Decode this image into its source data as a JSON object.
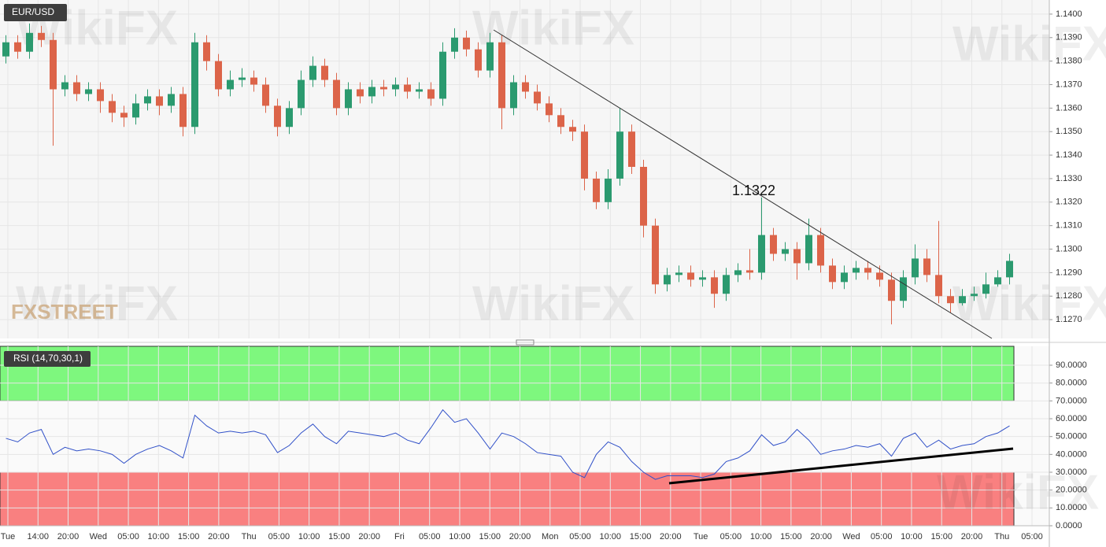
{
  "chart_data": [
    {
      "type": "candlestick",
      "title": "EUR/USD",
      "annotation": "1.1322",
      "logo": "FXSTREET",
      "watermark": "WikiFX",
      "up_color": "#2b9a6f",
      "down_color": "#dc6449",
      "grid": true,
      "open": [
        1.1382,
        1.1388,
        1.1384,
        1.1392,
        1.1389,
        1.1368,
        1.1371,
        1.1366,
        1.1368,
        1.1363,
        1.1358,
        1.1356,
        1.1362,
        1.1365,
        1.1361,
        1.1366,
        1.1352,
        1.1388,
        1.138,
        1.1368,
        1.1372,
        1.1373,
        1.137,
        1.1361,
        1.1352,
        1.136,
        1.1372,
        1.1378,
        1.1372,
        1.136,
        1.1368,
        1.1365,
        1.1369,
        1.1368,
        1.137,
        1.1367,
        1.1368,
        1.1364,
        1.1384,
        1.139,
        1.1385,
        1.1376,
        1.1388,
        1.136,
        1.1371,
        1.1367,
        1.1362,
        1.1357,
        1.1352,
        1.135,
        1.133,
        1.132,
        1.133,
        1.135,
        1.1335,
        1.131,
        1.1285,
        1.1289,
        1.129,
        1.1287,
        1.1288,
        1.1281,
        1.1289,
        1.1291,
        1.129,
        1.1306,
        1.1298,
        1.13,
        1.1294,
        1.1306,
        1.1293,
        1.1286,
        1.129,
        1.1292,
        1.129,
        1.1287,
        1.1278,
        1.1288,
        1.1296,
        1.1289,
        1.128,
        1.1277,
        1.128,
        1.1281,
        1.1285,
        1.1288
      ],
      "high": [
        1.1391,
        1.1391,
        1.1396,
        1.1395,
        1.1392,
        1.1374,
        1.1374,
        1.1371,
        1.1371,
        1.1366,
        1.1361,
        1.1366,
        1.1368,
        1.1368,
        1.1369,
        1.1369,
        1.1392,
        1.1391,
        1.1383,
        1.1376,
        1.1377,
        1.1376,
        1.1373,
        1.1364,
        1.1363,
        1.1376,
        1.1382,
        1.1381,
        1.1375,
        1.1371,
        1.1371,
        1.1372,
        1.1372,
        1.1373,
        1.1373,
        1.1371,
        1.1371,
        1.1388,
        1.1394,
        1.1393,
        1.1388,
        1.1392,
        1.1391,
        1.1374,
        1.1374,
        1.137,
        1.1365,
        1.136,
        1.1355,
        1.1353,
        1.1333,
        1.1334,
        1.136,
        1.1353,
        1.1338,
        1.1313,
        1.1292,
        1.1293,
        1.1293,
        1.1291,
        1.1291,
        1.1292,
        1.1294,
        1.13,
        1.1322,
        1.1309,
        1.1303,
        1.1303,
        1.1313,
        1.1309,
        1.1296,
        1.1293,
        1.1295,
        1.1295,
        1.1293,
        1.129,
        1.1291,
        1.1302,
        1.13,
        1.1312,
        1.1283,
        1.1283,
        1.1284,
        1.129,
        1.1291,
        1.1298
      ],
      "low": [
        1.1379,
        1.1381,
        1.1381,
        1.1386,
        1.1344,
        1.1365,
        1.1363,
        1.1363,
        1.1358,
        1.1354,
        1.1352,
        1.1353,
        1.1359,
        1.1357,
        1.1358,
        1.1348,
        1.1349,
        1.1376,
        1.1365,
        1.1365,
        1.1369,
        1.1367,
        1.1358,
        1.1348,
        1.1349,
        1.1357,
        1.1369,
        1.1369,
        1.1357,
        1.1357,
        1.1362,
        1.1362,
        1.1365,
        1.1365,
        1.1364,
        1.1364,
        1.1361,
        1.1361,
        1.1381,
        1.1382,
        1.1373,
        1.1373,
        1.1351,
        1.1357,
        1.1364,
        1.1359,
        1.1354,
        1.1349,
        1.1346,
        1.1325,
        1.1317,
        1.1317,
        1.1327,
        1.1332,
        1.1305,
        1.1281,
        1.1282,
        1.1286,
        1.1284,
        1.1284,
        1.1275,
        1.1278,
        1.1286,
        1.1287,
        1.1287,
        1.1295,
        1.1295,
        1.1287,
        1.1291,
        1.129,
        1.1283,
        1.1283,
        1.1287,
        1.1287,
        1.1284,
        1.1268,
        1.1275,
        1.1285,
        1.1286,
        1.1277,
        1.1273,
        1.1276,
        1.1278,
        1.1279,
        1.1284,
        1.1285
      ],
      "close": [
        1.1388,
        1.1384,
        1.1392,
        1.1389,
        1.1368,
        1.1371,
        1.1366,
        1.1368,
        1.1363,
        1.1358,
        1.1356,
        1.1362,
        1.1365,
        1.1361,
        1.1366,
        1.1352,
        1.1388,
        1.138,
        1.1368,
        1.1372,
        1.1373,
        1.137,
        1.1361,
        1.1352,
        1.136,
        1.1372,
        1.1378,
        1.1372,
        1.136,
        1.1368,
        1.1365,
        1.1369,
        1.1368,
        1.137,
        1.1367,
        1.1368,
        1.1364,
        1.1384,
        1.139,
        1.1385,
        1.1376,
        1.1388,
        1.136,
        1.1371,
        1.1367,
        1.1362,
        1.1357,
        1.1352,
        1.135,
        1.133,
        1.132,
        1.133,
        1.135,
        1.1335,
        1.131,
        1.1285,
        1.1289,
        1.129,
        1.1287,
        1.1288,
        1.1281,
        1.1289,
        1.1291,
        1.129,
        1.1306,
        1.1298,
        1.13,
        1.1294,
        1.1306,
        1.1293,
        1.1286,
        1.129,
        1.1292,
        1.129,
        1.1287,
        1.1278,
        1.1288,
        1.1296,
        1.1289,
        1.128,
        1.1277,
        1.128,
        1.1281,
        1.1285,
        1.1288,
        1.1295
      ],
      "ylim": [
        1.1262,
        1.1406
      ],
      "yticks": [
        {
          "value": 1.127,
          "label": "1.1270"
        },
        {
          "value": 1.128,
          "label": "1.1280"
        },
        {
          "value": 1.129,
          "label": "1.1290"
        },
        {
          "value": 1.13,
          "label": "1.1300"
        },
        {
          "value": 1.131,
          "label": "1.1310"
        },
        {
          "value": 1.132,
          "label": "1.1320"
        },
        {
          "value": 1.133,
          "label": "1.1330"
        },
        {
          "value": 1.134,
          "label": "1.1340"
        },
        {
          "value": 1.135,
          "label": "1.1350"
        },
        {
          "value": 1.136,
          "label": "1.1360"
        },
        {
          "value": 1.137,
          "label": "1.1370"
        },
        {
          "value": 1.138,
          "label": "1.1380"
        },
        {
          "value": 1.139,
          "label": "1.1390"
        },
        {
          "value": 1.14,
          "label": "1.1400"
        }
      ]
    },
    {
      "type": "line",
      "title": "RSI (14,70,30,1)",
      "color": "#3050c8",
      "watermark": "WikiFX",
      "overbought": 70,
      "oversold": 30,
      "overbought_color": "#7ef77e",
      "oversold_color": "#f98080",
      "grid": true,
      "values": [
        49,
        47,
        52,
        54,
        40,
        44,
        42,
        43,
        42,
        40,
        35,
        40,
        43,
        45,
        42,
        38,
        62,
        56,
        52,
        53,
        52,
        53,
        51,
        41,
        45,
        52,
        57,
        50,
        46,
        53,
        52,
        51,
        50,
        52,
        48,
        46,
        55,
        65,
        58,
        60,
        52,
        43,
        52,
        50,
        46,
        41,
        40,
        39,
        30,
        27,
        40,
        47,
        44,
        36,
        30,
        26,
        28,
        28,
        28,
        27,
        29,
        36,
        38,
        42,
        51,
        45,
        47,
        54,
        48,
        40,
        42,
        43,
        45,
        44,
        46,
        39,
        49,
        52,
        44,
        48,
        43,
        45,
        46,
        50,
        52,
        56
      ],
      "ylim": [
        0,
        100.6
      ],
      "yticks": [
        {
          "value": 0,
          "label": "0.0000"
        },
        {
          "value": 10,
          "label": "10.0000"
        },
        {
          "value": 20,
          "label": "20.0000"
        },
        {
          "value": 30,
          "label": "30.0000"
        },
        {
          "value": 40,
          "label": "40.0000"
        },
        {
          "value": 50,
          "label": "50.0000"
        },
        {
          "value": 60,
          "label": "60.0000"
        },
        {
          "value": 70,
          "label": "70.0000"
        },
        {
          "value": 80,
          "label": "80.0000"
        },
        {
          "value": 90,
          "label": "90.0000"
        }
      ],
      "x_labels": [
        "Tue",
        "14:00",
        "20:00",
        "Wed",
        "05:00",
        "10:00",
        "15:00",
        "20:00",
        "Thu",
        "05:00",
        "10:00",
        "15:00",
        "20:00",
        "Fri",
        "05:00",
        "10:00",
        "15:00",
        "20:00",
        "Mon",
        "05:00",
        "10:00",
        "15:00",
        "20:00",
        "Tue",
        "05:00",
        "10:00",
        "15:00",
        "20:00",
        "Wed",
        "05:00",
        "10:00",
        "15:00",
        "20:00",
        "Thu",
        "05:00"
      ]
    }
  ]
}
